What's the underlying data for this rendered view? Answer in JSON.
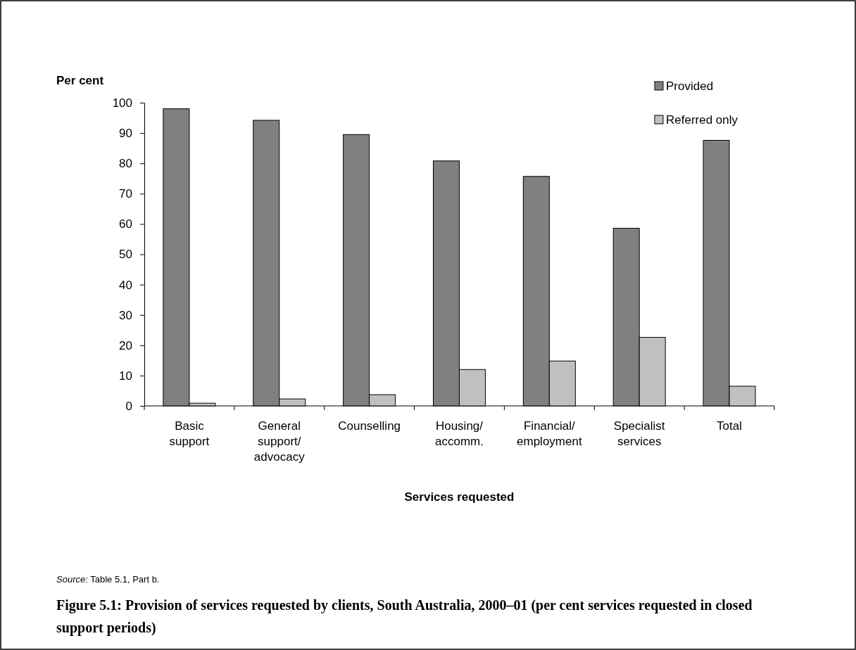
{
  "chart_data": {
    "type": "bar",
    "title": "Figure 5.1: Provision of services requested by clients, South Australia, 2000–01 (per cent services requested in closed support periods)",
    "xlabel": "Services requested",
    "ylabel": "Per cent",
    "annotations": [
      "Source: Table 5.1, Part b."
    ],
    "categories": [
      "Basic support",
      "General support/ advocacy",
      "Counselling",
      "Housing/ accomm.",
      "Financial/ employment",
      "Specialist services",
      "Total"
    ],
    "series": [
      {
        "name": "Provided",
        "color": "#808080",
        "values": [
          98,
          94.2,
          89.5,
          80.8,
          75.7,
          58.6,
          87.6
        ]
      },
      {
        "name": "Referred only",
        "color": "#c0c0c0",
        "values": [
          0.9,
          2.3,
          3.7,
          12,
          14.8,
          22.6,
          6.5
        ]
      }
    ],
    "ylim": [
      0,
      100
    ],
    "yticks": [
      0,
      10,
      20,
      30,
      40,
      50,
      60,
      70,
      80,
      90,
      100
    ],
    "grid": false,
    "legend": "top right"
  }
}
